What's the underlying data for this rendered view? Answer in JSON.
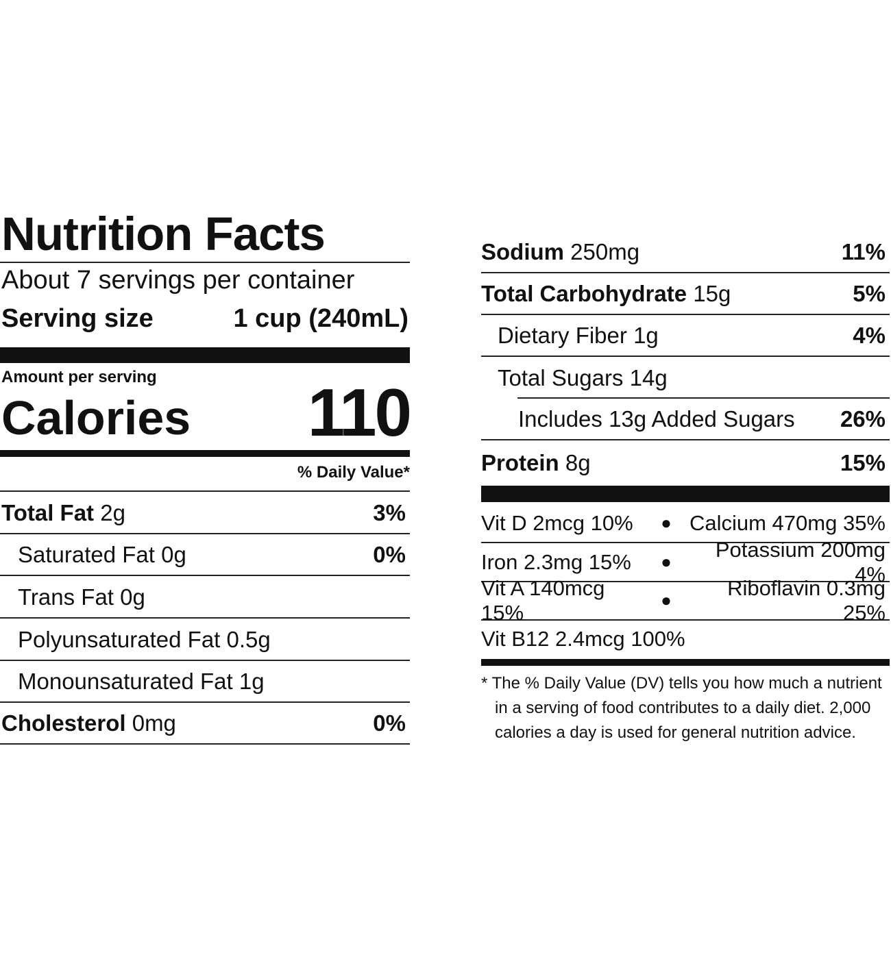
{
  "title": "Nutrition Facts",
  "servings": "About 7 servings per container",
  "serving_size": {
    "label": "Serving size",
    "value": "1 cup (240mL)"
  },
  "amount_per_serving": "Amount per serving",
  "calories": {
    "label": "Calories",
    "value": "110"
  },
  "dv_header": "% Daily Value*",
  "left_rows": [
    {
      "name": "Total Fat",
      "amount": "2g",
      "dv": "3%"
    },
    {
      "name": "Saturated Fat",
      "amount": "0g",
      "dv": "0%"
    },
    {
      "name": "Trans Fat",
      "amount": "0g"
    },
    {
      "name": "Polyunsaturated Fat",
      "amount": "0.5g"
    },
    {
      "name": "Monounsaturated Fat",
      "amount": "1g"
    },
    {
      "name": "Cholesterol",
      "amount": "0mg",
      "dv": "0%"
    }
  ],
  "right_rows": [
    {
      "name": "Sodium",
      "amount": "250mg",
      "dv": "11%"
    },
    {
      "name": "Total Carbohydrate",
      "amount": "15g",
      "dv": "5%"
    },
    {
      "name": "Dietary Fiber",
      "amount": "1g",
      "dv": "4%"
    },
    {
      "name": "Total Sugars",
      "amount": "14g"
    },
    {
      "name": "Includes 13g Added Sugars",
      "dv": "26%"
    },
    {
      "name": "Protein",
      "amount": "8g",
      "dv": "15%"
    }
  ],
  "vitamins": [
    {
      "left": "Vit D 2mcg 10%",
      "right": "Calcium 470mg 35%"
    },
    {
      "left": "Iron 2.3mg 15%",
      "right": "Potassium 200mg 4%"
    },
    {
      "left": "Vit A 140mcg 15%",
      "right": "Riboflavin 0.3mg 25%"
    },
    {
      "left": "Vit B12 2.4mcg 100%"
    }
  ],
  "footnote": "* The % Daily Value (DV) tells you how much a nutrient in a serving of food contributes to a daily diet. 2,000 calories a day is used for general nutrition advice."
}
